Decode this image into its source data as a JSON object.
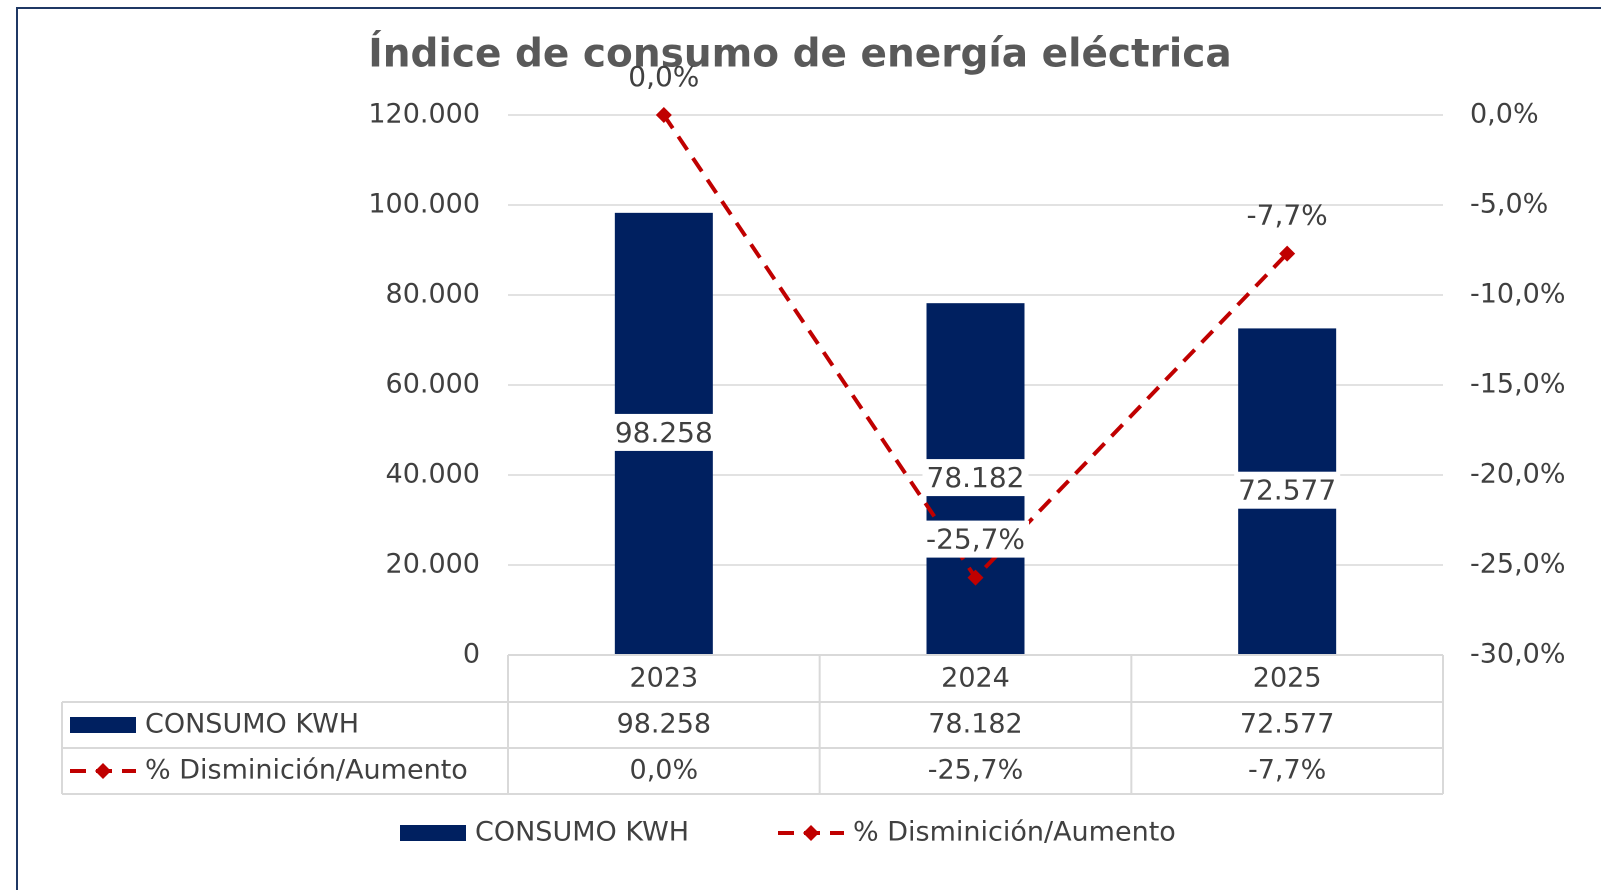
{
  "chart_data": {
    "type": "bar",
    "title": "Índice de consumo de energía eléctrica",
    "categories": [
      "2023",
      "2024",
      "2025"
    ],
    "series": [
      {
        "name": "CONSUMO KWH",
        "type": "bar",
        "color": "#002060",
        "values": [
          98258,
          78182,
          72577
        ],
        "value_labels": [
          "98.258",
          "78.182",
          "72.577"
        ]
      },
      {
        "name": "% Disminición/Aumento",
        "type": "line",
        "axis": "y2",
        "color": "#c00000",
        "values": [
          0,
          -25.7,
          -7.7
        ],
        "value_labels": [
          "0,0%",
          "-25,7%",
          "-7,7%"
        ]
      }
    ],
    "ylim": [
      0,
      120000
    ],
    "yticks": [
      0,
      {
        "value": 20000,
        "label": "20.000"
      },
      {
        "value": 40000,
        "label": "40.000"
      },
      {
        "value": 60000,
        "label": "60.000"
      },
      {
        "value": 80000,
        "label": "80.000"
      },
      {
        "value": 100000,
        "label": "100.000"
      },
      {
        "value": 120000,
        "label": "120.000"
      }
    ],
    "y2lim": [
      -30,
      0
    ],
    "y2ticks": [
      {
        "value": -30,
        "label": "-30,0%"
      },
      {
        "value": -25,
        "label": "-25,0%"
      },
      {
        "value": -20,
        "label": "-20,0%"
      },
      {
        "value": -15,
        "label": "-15,0%"
      },
      {
        "value": -10,
        "label": "-10,0%"
      },
      {
        "value": -5,
        "label": "-5,0%"
      },
      {
        "value": 0,
        "label": "0,0%"
      }
    ],
    "grid": true,
    "data_table": true,
    "legend": "bottom"
  }
}
